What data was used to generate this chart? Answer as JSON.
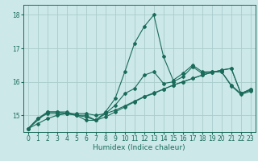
{
  "title": "",
  "xlabel": "Humidex (Indice chaleur)",
  "ylabel": "",
  "bg_color": "#cce8e8",
  "grid_color": "#aacccc",
  "line_color": "#1a6b5a",
  "xlim": [
    -0.5,
    23.5
  ],
  "ylim": [
    14.5,
    18.3
  ],
  "yticks": [
    15,
    16,
    17,
    18
  ],
  "xticks": [
    0,
    1,
    2,
    3,
    4,
    5,
    6,
    7,
    8,
    9,
    10,
    11,
    12,
    13,
    14,
    15,
    16,
    17,
    18,
    19,
    20,
    21,
    22,
    23
  ],
  "series": [
    {
      "x": [
        0,
        1,
        2,
        3,
        4,
        5,
        6,
        7,
        8,
        9,
        10,
        11,
        12,
        13,
        14,
        15,
        16,
        17,
        18,
        19,
        20,
        21,
        22,
        23
      ],
      "y": [
        14.6,
        14.9,
        15.1,
        15.1,
        15.1,
        15.0,
        15.0,
        14.85,
        15.1,
        15.5,
        16.3,
        17.15,
        17.65,
        18.0,
        16.75,
        16.05,
        16.25,
        16.5,
        16.3,
        16.3,
        16.3,
        15.9,
        15.65,
        15.75
      ]
    },
    {
      "x": [
        0,
        2,
        3,
        4,
        5,
        6,
        7,
        8,
        9,
        10,
        11,
        12,
        13,
        14,
        15,
        16,
        17,
        18,
        19,
        20,
        21,
        22,
        23
      ],
      "y": [
        14.6,
        15.1,
        15.1,
        15.05,
        15.0,
        14.85,
        14.85,
        15.05,
        15.3,
        15.65,
        15.8,
        16.2,
        16.3,
        15.95,
        16.0,
        16.15,
        16.45,
        16.25,
        16.3,
        16.3,
        15.88,
        15.62,
        15.72
      ]
    },
    {
      "x": [
        0,
        1,
        2,
        3,
        4,
        5,
        6,
        7,
        8,
        9,
        10,
        11,
        12,
        13,
        14,
        15,
        16,
        17,
        18,
        19,
        20,
        21,
        22,
        23
      ],
      "y": [
        14.6,
        14.9,
        15.05,
        15.05,
        15.05,
        15.0,
        14.95,
        14.85,
        14.95,
        15.1,
        15.25,
        15.4,
        15.55,
        15.65,
        15.78,
        15.9,
        16.0,
        16.1,
        16.2,
        16.28,
        16.35,
        16.4,
        15.65,
        15.78
      ]
    },
    {
      "x": [
        0,
        1,
        2,
        3,
        4,
        5,
        6,
        7,
        8,
        9,
        10,
        11,
        12,
        13,
        14,
        15,
        16,
        17,
        18,
        19,
        20,
        21,
        22,
        23
      ],
      "y": [
        14.6,
        14.75,
        14.9,
        15.0,
        15.05,
        15.05,
        15.05,
        15.0,
        15.05,
        15.15,
        15.28,
        15.42,
        15.56,
        15.67,
        15.78,
        15.9,
        16.0,
        16.1,
        16.2,
        16.28,
        16.35,
        16.4,
        15.65,
        15.78
      ]
    }
  ]
}
